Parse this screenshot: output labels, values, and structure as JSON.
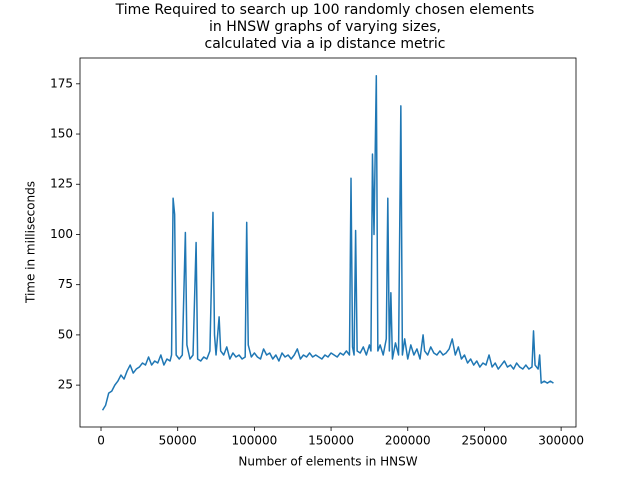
{
  "chart_data": {
    "type": "line",
    "title": [
      "Time Required to search up 100 randomly chosen elements",
      "in HNSW graphs of varying sizes,",
      "calculated via a ip distance metric"
    ],
    "x_label": "Number of elements in HNSW",
    "y_label": "Time in milliseconds",
    "xlim": [
      -13700,
      309700
    ],
    "ylim": [
      4.15,
      187.85
    ],
    "xticks": [
      0,
      50000,
      100000,
      150000,
      200000,
      250000,
      300000
    ],
    "yticks": [
      25,
      50,
      75,
      100,
      125,
      150,
      175
    ],
    "series": [
      {
        "color": "#1f77b4",
        "x": [
          1000,
          3000,
          5000,
          7000,
          9000,
          11000,
          13000,
          15000,
          17000,
          19000,
          21000,
          23000,
          25000,
          27000,
          29000,
          31000,
          33000,
          35000,
          37000,
          39000,
          41000,
          43000,
          45000,
          46000,
          47000,
          48000,
          49000,
          51000,
          53000,
          55000,
          56000,
          58000,
          60000,
          62000,
          63000,
          65000,
          67000,
          69000,
          71000,
          73000,
          74000,
          75000,
          77000,
          78000,
          80000,
          82000,
          84000,
          86000,
          88000,
          90000,
          92000,
          94000,
          95000,
          96000,
          98000,
          100000,
          102000,
          104000,
          106000,
          108000,
          110000,
          112000,
          114000,
          116000,
          118000,
          120000,
          122000,
          124000,
          126000,
          128000,
          130000,
          132000,
          134000,
          136000,
          138000,
          140000,
          142000,
          144000,
          146000,
          148000,
          150000,
          152000,
          154000,
          156000,
          158000,
          160000,
          162000,
          163000,
          164000,
          165000,
          166000,
          167000,
          169000,
          171000,
          173000,
          175000,
          176000,
          177000,
          178000,
          179500,
          180500,
          182000,
          184000,
          186000,
          187000,
          188000,
          189000,
          190000,
          192000,
          194000,
          195500,
          196500,
          198000,
          200000,
          202000,
          204000,
          206000,
          208000,
          210000,
          211000,
          213000,
          215000,
          217000,
          219000,
          221000,
          223000,
          225000,
          227000,
          229000,
          231000,
          233000,
          235000,
          237000,
          239000,
          241000,
          243000,
          245000,
          247000,
          249000,
          251000,
          253000,
          255000,
          257000,
          259000,
          261000,
          263000,
          265000,
          267000,
          269000,
          271000,
          273000,
          275000,
          277000,
          279000,
          281000,
          282000,
          283000,
          285000,
          286000,
          287000,
          289000,
          291000,
          293000,
          295000
        ],
        "values": [
          12.5,
          15,
          21,
          22,
          25,
          27,
          30,
          28,
          32,
          35,
          31,
          33,
          34,
          36,
          35,
          39,
          35,
          37,
          36,
          40,
          35,
          38,
          37,
          40,
          118,
          110,
          40,
          38,
          40,
          101,
          45,
          38,
          40,
          96,
          38,
          37,
          39,
          38,
          42,
          111,
          50,
          40,
          59,
          42,
          40,
          44,
          38,
          41,
          39,
          40,
          38,
          39,
          106,
          45,
          39,
          41,
          39,
          38,
          43,
          40,
          41,
          38,
          40,
          37,
          41,
          39,
          40,
          38,
          40,
          43,
          38,
          40,
          39,
          41,
          39,
          40,
          39,
          38,
          40,
          39,
          41,
          40,
          39,
          41,
          40,
          42,
          40,
          128,
          44,
          40,
          102,
          42,
          41,
          44,
          40,
          45,
          42,
          140,
          100,
          179,
          42,
          45,
          40,
          48,
          118,
          42,
          71,
          38,
          46,
          40,
          164,
          40,
          48,
          38,
          45,
          40,
          43,
          38,
          50,
          42,
          40,
          44,
          41,
          40,
          42,
          40,
          41,
          43,
          48,
          40,
          44,
          38,
          40,
          36,
          38,
          35,
          37,
          34,
          36,
          35,
          40,
          34,
          36,
          33,
          35,
          37,
          34,
          35,
          33,
          36,
          34,
          33,
          35,
          33,
          34,
          52,
          35,
          33,
          40,
          26,
          27,
          26,
          27,
          26
        ]
      }
    ]
  }
}
